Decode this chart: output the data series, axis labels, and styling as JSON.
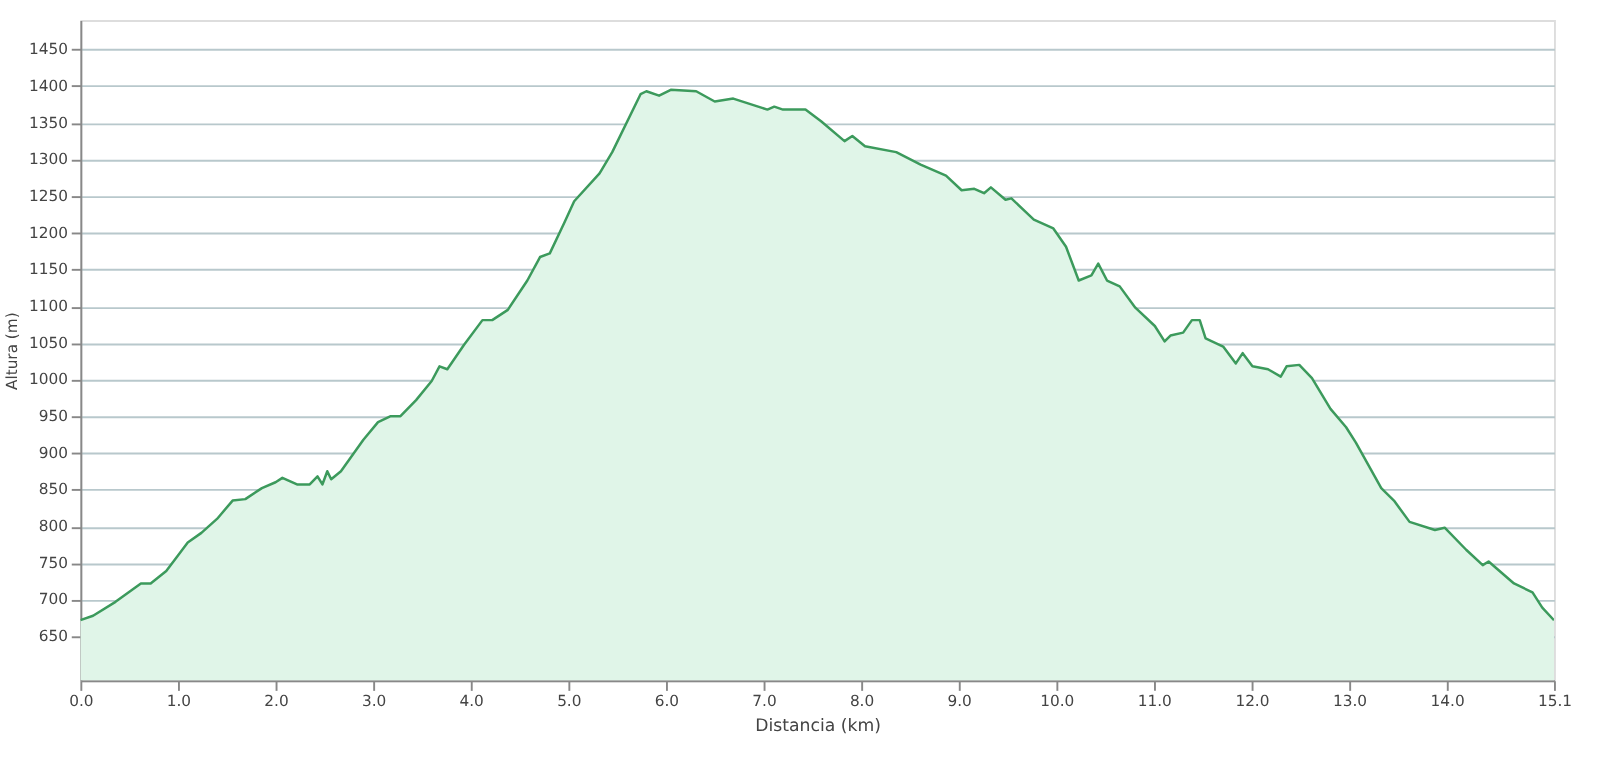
{
  "chart_data": {
    "type": "area",
    "xlabel": "Distancia (km)",
    "ylabel": "Altura (m)",
    "xlim": [
      0,
      15.1
    ],
    "ylim": [
      590,
      1490
    ],
    "xticks": [
      {
        "value": 0,
        "label": "0.0"
      },
      {
        "value": 1,
        "label": "1.0"
      },
      {
        "value": 2,
        "label": "2.0"
      },
      {
        "value": 3,
        "label": "3.0"
      },
      {
        "value": 4,
        "label": "4.0"
      },
      {
        "value": 5,
        "label": "5.0"
      },
      {
        "value": 6,
        "label": "6.0"
      },
      {
        "value": 7,
        "label": "7.0"
      },
      {
        "value": 8,
        "label": "8.0"
      },
      {
        "value": 9,
        "label": "9.0"
      },
      {
        "value": 10,
        "label": "10.0"
      },
      {
        "value": 11,
        "label": "11.0"
      },
      {
        "value": 12,
        "label": "12.0"
      },
      {
        "value": 13,
        "label": "13.0"
      },
      {
        "value": 14,
        "label": "14.0"
      },
      15.1
    ],
    "yticks": [
      650,
      700,
      750,
      800,
      850,
      900,
      950,
      1000,
      1050,
      1100,
      1150,
      1200,
      1250,
      1300,
      1350,
      1400,
      1450
    ],
    "grid": "y",
    "line_style": "solid",
    "series": [
      {
        "color": "#3c9a5c",
        "x": [
          0,
          0.13,
          0.36,
          0.62,
          0.72,
          0.88,
          1.0,
          1.1,
          1.24,
          1.4,
          1.56,
          1.69,
          1.86,
          2.0,
          2.07,
          2.22,
          2.35,
          2.43,
          2.48,
          2.53,
          2.57,
          2.67,
          2.9,
          3.05,
          3.18,
          3.28,
          3.44,
          3.6,
          3.68,
          3.76,
          3.93,
          4.12,
          4.22,
          4.38,
          4.58,
          4.71,
          4.81,
          4.96,
          5.06,
          5.32,
          5.45,
          5.74,
          5.8,
          5.93,
          6.05,
          6.31,
          6.5,
          6.69,
          7.04,
          7.11,
          7.2,
          7.43,
          7.59,
          7.83,
          7.91,
          8.04,
          8.36,
          8.61,
          8.87,
          9.03,
          9.16,
          9.26,
          9.33,
          9.48,
          9.54,
          9.77,
          9.97,
          10.1,
          10.23,
          10.36,
          10.43,
          10.52,
          10.65,
          10.81,
          11.01,
          11.11,
          11.17,
          11.3,
          11.39,
          11.47,
          11.53,
          11.71,
          11.84,
          11.91,
          12.01,
          12.17,
          12.3,
          12.36,
          12.49,
          12.62,
          12.81,
          12.97,
          13.07,
          13.33,
          13.46,
          13.62,
          13.88,
          13.98,
          14.2,
          14.37,
          14.43,
          14.69,
          14.88,
          14.98,
          15.1
        ],
        "values": [
          672,
          678,
          697,
          722,
          722,
          739,
          760,
          778,
          791,
          810,
          835,
          837,
          852,
          860,
          866,
          857,
          857,
          868,
          857,
          875,
          864,
          875,
          918,
          942,
          950,
          950,
          972,
          998,
          1018,
          1014,
          1047,
          1081,
          1081,
          1095,
          1135,
          1167,
          1172,
          1214,
          1243,
          1281,
          1310,
          1389,
          1393,
          1387,
          1395,
          1393,
          1379,
          1383,
          1368,
          1372,
          1368,
          1368,
          1352,
          1325,
          1332,
          1318,
          1310,
          1293,
          1278,
          1258,
          1260,
          1254,
          1262,
          1245,
          1247,
          1218,
          1206,
          1181,
          1135,
          1142,
          1158,
          1135,
          1127,
          1098,
          1073,
          1052,
          1060,
          1064,
          1081,
          1081,
          1056,
          1045,
          1022,
          1036,
          1018,
          1014,
          1004,
          1018,
          1020,
          1002,
          960,
          935,
          914,
          852,
          835,
          806,
          795,
          798,
          768,
          747,
          752,
          722,
          710,
          689,
          672
        ]
      }
    ]
  }
}
